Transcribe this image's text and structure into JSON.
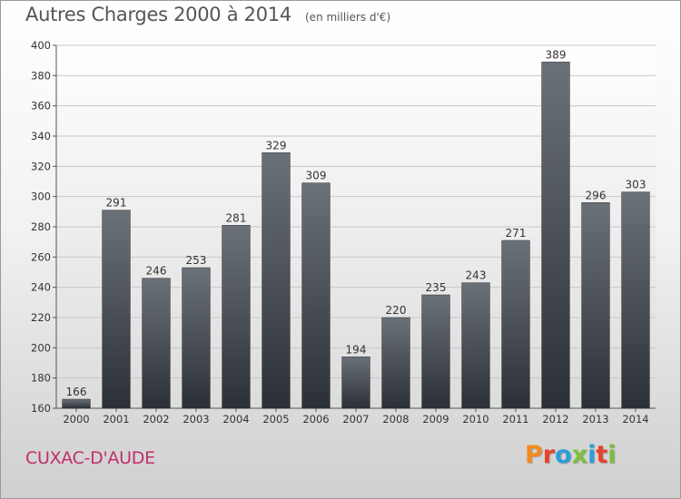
{
  "header": {
    "title": "Autres Charges 2000 à 2014",
    "subtitle": "(en milliers d'€)"
  },
  "footer": {
    "commune": "CUXAC-D'AUDE",
    "logo_text": "Proxiti"
  },
  "colors": {
    "bar_top": "#6b7178",
    "bar_bottom": "#2b3036",
    "commune": "#c0306a",
    "logo": [
      "#f28c1f",
      "#e8412c",
      "#2a9fd8",
      "#7cbf3a",
      "#2a9fd8",
      "#e8412c",
      "#7cbf3a"
    ]
  },
  "chart_data": {
    "type": "bar",
    "title": "Autres Charges 2000 à 2014",
    "subtitle": "(en milliers d'€)",
    "xlabel": "",
    "ylabel": "",
    "categories": [
      "2000",
      "2001",
      "2002",
      "2003",
      "2004",
      "2005",
      "2006",
      "2007",
      "2008",
      "2009",
      "2010",
      "2011",
      "2012",
      "2013",
      "2014"
    ],
    "values": [
      166,
      291,
      246,
      253,
      281,
      329,
      309,
      194,
      220,
      235,
      243,
      271,
      389,
      296,
      303
    ],
    "ylim": [
      160,
      400
    ],
    "yticks": [
      160,
      180,
      200,
      220,
      240,
      260,
      280,
      300,
      320,
      340,
      360,
      380,
      400
    ],
    "grid": true,
    "legend": "none"
  }
}
